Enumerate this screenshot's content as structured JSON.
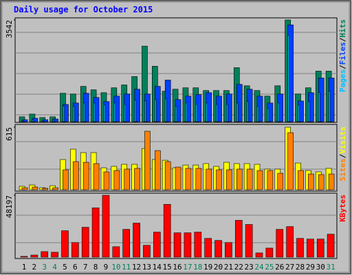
{
  "title": "Daily usage for October 2015",
  "legend_separator": "/",
  "chart_data": [
    {
      "type": "bar",
      "ylim": [
        0,
        3542
      ],
      "yticks": [
        3542
      ],
      "series": [
        {
          "name": "Hits",
          "color": "#00805c",
          "values": [
            170,
            265,
            145,
            170,
            990,
            965,
            1230,
            1110,
            1010,
            1180,
            1280,
            1570,
            2630,
            1930,
            1060,
            1130,
            1180,
            1180,
            1085,
            1085,
            1085,
            1880,
            1250,
            1085,
            890,
            1250,
            3542,
            965,
            1180,
            1760,
            1760
          ]
        },
        {
          "name": "Files",
          "color": "#0040ff",
          "values": [
            70,
            120,
            70,
            95,
            600,
            650,
            990,
            845,
            700,
            890,
            965,
            1130,
            965,
            1230,
            1450,
            770,
            890,
            940,
            1010,
            890,
            965,
            1300,
            1130,
            890,
            650,
            965,
            3370,
            720,
            1010,
            1520,
            1520
          ]
        },
        {
          "name": "Pages",
          "color": "#00c0ff",
          "values": [
            40,
            60,
            40,
            50,
            550,
            530,
            650,
            650,
            580,
            650,
            600,
            750,
            720,
            770,
            795,
            530,
            650,
            600,
            650,
            600,
            600,
            650,
            700,
            530,
            460,
            650,
            3010,
            580,
            700,
            1010,
            1060
          ]
        }
      ]
    },
    {
      "type": "bar",
      "ylim": [
        0,
        615
      ],
      "yticks": [
        615
      ],
      "series": [
        {
          "name": "Visits",
          "color": "#ffff00",
          "values": [
            34,
            47,
            20,
            40,
            297,
            399,
            365,
            365,
            216,
            230,
            250,
            250,
            405,
            297,
            290,
            216,
            243,
            243,
            257,
            230,
            270,
            257,
            257,
            250,
            203,
            203,
            615,
            263,
            189,
            176,
            210
          ]
        },
        {
          "name": "Sites",
          "color": "#ff8000",
          "values": [
            20,
            27,
            14,
            20,
            196,
            277,
            270,
            257,
            176,
            189,
            203,
            210,
            575,
            385,
            277,
            223,
            210,
            210,
            203,
            196,
            196,
            203,
            203,
            189,
            189,
            162,
            561,
            189,
            155,
            149,
            155
          ]
        }
      ]
    },
    {
      "type": "bar",
      "ylim": [
        0,
        48197
      ],
      "yticks": [
        48197
      ],
      "categories": [
        "1",
        "2",
        "3",
        "4",
        "5",
        "6",
        "7",
        "8",
        "9",
        "10",
        "11",
        "12",
        "13",
        "14",
        "15",
        "16",
        "17",
        "18",
        "19",
        "20",
        "21",
        "22",
        "23",
        "24",
        "25",
        "26",
        "27",
        "28",
        "29",
        "30",
        "31"
      ],
      "category_colors": [
        "#000000",
        "#000000",
        "#00805c",
        "#00805c",
        "#000000",
        "#000000",
        "#000000",
        "#000000",
        "#000000",
        "#00805c",
        "#00805c",
        "#000000",
        "#000000",
        "#000000",
        "#000000",
        "#000000",
        "#00805c",
        "#00805c",
        "#000000",
        "#000000",
        "#000000",
        "#000000",
        "#000000",
        "#00805c",
        "#00805c",
        "#000000",
        "#000000",
        "#000000",
        "#000000",
        "#000000",
        "#00805c"
      ],
      "series": [
        {
          "name": "KBytes",
          "color": "#ff0000",
          "values": [
            600,
            1600,
            4300,
            3800,
            20560,
            11360,
            23260,
            38410,
            48197,
            8100,
            21640,
            26500,
            9200,
            19480,
            41120,
            18940,
            18940,
            19480,
            14600,
            13000,
            11360,
            28670,
            25430,
            3250,
            7030,
            21640,
            23800,
            14600,
            14070,
            14070,
            17850
          ]
        }
      ]
    }
  ]
}
